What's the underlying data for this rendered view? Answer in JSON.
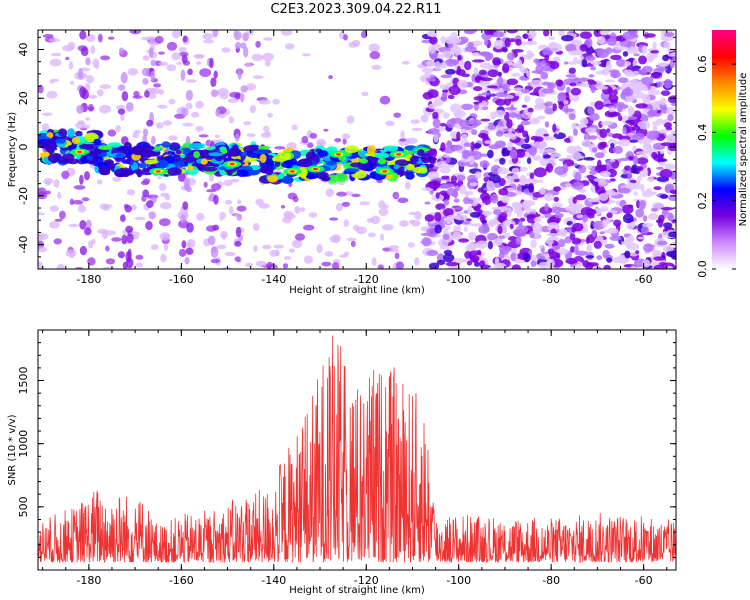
{
  "title": "C2E3.2023.309.04.22.R11",
  "chart_data": [
    {
      "type": "heatmap",
      "xlabel": "Height of straight line (km)",
      "ylabel": "Frequency (Hz)",
      "xlim": [
        -191,
        -53
      ],
      "ylim": [
        -50,
        48
      ],
      "xticks": [
        -180,
        -160,
        -140,
        -120,
        -100,
        -80,
        -60
      ],
      "yticks": [
        -40,
        -20,
        0,
        20,
        40
      ],
      "colorbar": {
        "label": "Normalized spectral amplitude",
        "range": [
          0.0,
          0.7
        ],
        "ticks": [
          0.0,
          0.2,
          0.4,
          0.6
        ],
        "colors": [
          "#ffffff",
          "#cc88ff",
          "#7700dd",
          "#0000ff",
          "#00ffff",
          "#00ff00",
          "#ffff00",
          "#ff8800",
          "#ff0000",
          "#ff0088"
        ]
      },
      "features": {
        "signal_band_center_hz": -5,
        "signal_band_xrange_km": [
          -190,
          -107
        ],
        "noise_dense_xrange_km": [
          -107,
          -53
        ]
      }
    },
    {
      "type": "line",
      "xlabel": "Height of straight line (km)",
      "ylabel": "SNR (10 * v/v)",
      "xlim": [
        -191,
        -53
      ],
      "ylim": [
        0,
        1900
      ],
      "xticks": [
        -180,
        -160,
        -140,
        -120,
        -100,
        -80,
        -60
      ],
      "yticks": [
        500,
        1000,
        1500
      ],
      "color": "#ee3333",
      "envelope": {
        "x": [
          -190,
          -183,
          -178,
          -172,
          -168,
          -165,
          -160,
          -152,
          -146,
          -142,
          -138,
          -134,
          -130,
          -128,
          -125,
          -122,
          -118,
          -114,
          -110,
          -107,
          -105,
          -95,
          -80,
          -70,
          -60,
          -53
        ],
        "y": [
          350,
          450,
          620,
          560,
          520,
          300,
          380,
          440,
          560,
          580,
          850,
          1150,
          1550,
          1880,
          1700,
          1450,
          1600,
          1550,
          1400,
          1250,
          400,
          380,
          360,
          400,
          380,
          340
        ]
      }
    }
  ]
}
